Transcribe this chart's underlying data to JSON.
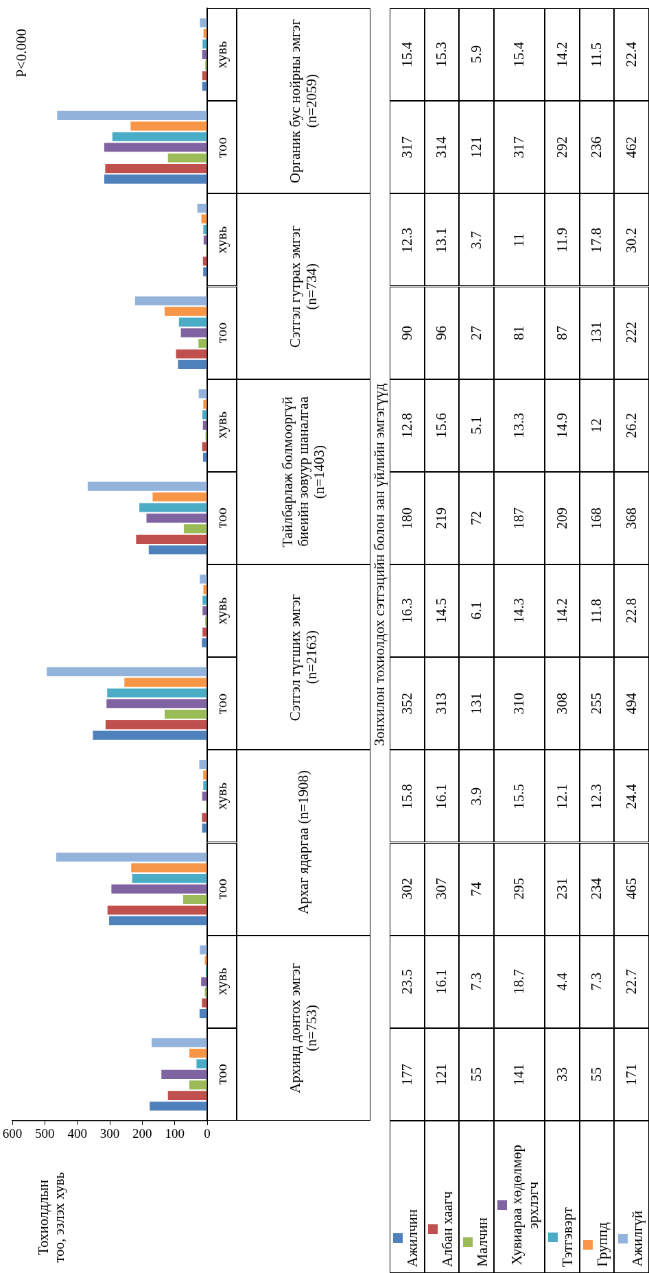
{
  "chart_data": {
    "type": "bar",
    "orientation": "horizontal",
    "categories": [
      "хувь",
      "тоо",
      "хувь",
      "тоо",
      "хувь",
      "тоо",
      "хувь",
      "тоо",
      "хувь",
      "тоо",
      "хувь",
      "тоо"
    ],
    "series": [
      {
        "name": "Ажилчин",
        "color": "#4f81bd",
        "values": [
          15.4,
          317,
          12.3,
          90,
          12.8,
          180,
          16.3,
          352,
          15.8,
          302,
          23.5,
          177
        ]
      },
      {
        "name": "Албан хаагч",
        "color": "#c0504d",
        "values": [
          15.3,
          314,
          13.1,
          96,
          15.6,
          219,
          14.5,
          313,
          16.1,
          307,
          16.1,
          121
        ]
      },
      {
        "name": "Малчин",
        "color": "#9bbb59",
        "values": [
          5.9,
          121,
          3.7,
          27,
          5.1,
          72,
          6.1,
          131,
          3.9,
          74,
          7.3,
          55
        ]
      },
      {
        "name": "Хувиараа хөдөлмөр эрхлэгч",
        "color": "#8064a2",
        "values": [
          15.4,
          317,
          11,
          81,
          13.3,
          187,
          14.3,
          310,
          15.5,
          295,
          18.7,
          141
        ]
      },
      {
        "name": "Тэтгэвэрт",
        "color": "#4bacc6",
        "values": [
          14.2,
          292,
          11.9,
          87,
          14.9,
          209,
          14.2,
          308,
          12.1,
          231,
          4.4,
          33
        ]
      },
      {
        "name": "Группд",
        "color": "#f79646",
        "values": [
          11.5,
          236,
          17.8,
          131,
          12,
          168,
          11.8,
          255,
          12.3,
          234,
          7.3,
          55
        ]
      },
      {
        "name": "Ажилгүй",
        "color": "#93b3dc",
        "values": [
          22.4,
          462,
          30.2,
          222,
          26.2,
          368,
          22.8,
          494,
          24.4,
          465,
          22.7,
          171
        ]
      }
    ],
    "xlim": [
      600,
      0
    ],
    "xticks": [
      600,
      500,
      400,
      300,
      200,
      100,
      0
    ],
    "annotations": [
      "Органик бус нойрны эмгэг (n=2059)",
      "Сэтгэл гутрах эмгэг (n=734)",
      "Тайлбарлаж болмооргүй биеийн зовуур шаналгаа (n=1403)",
      "Сэтгэл түгших эмгэг (n=2163)",
      "Архаг ядаргаа (n=1908)",
      "Архинд донтох эмгэг (n=753)",
      "P<0.000",
      "Зонхилон тохиолдох сэтгэцийн болон зан үйлийн эмгэгүүд",
      "Тохиолдлын тоо, эзлэх хувь"
    ],
    "legend": "bottom",
    "data_labels": true
  }
}
